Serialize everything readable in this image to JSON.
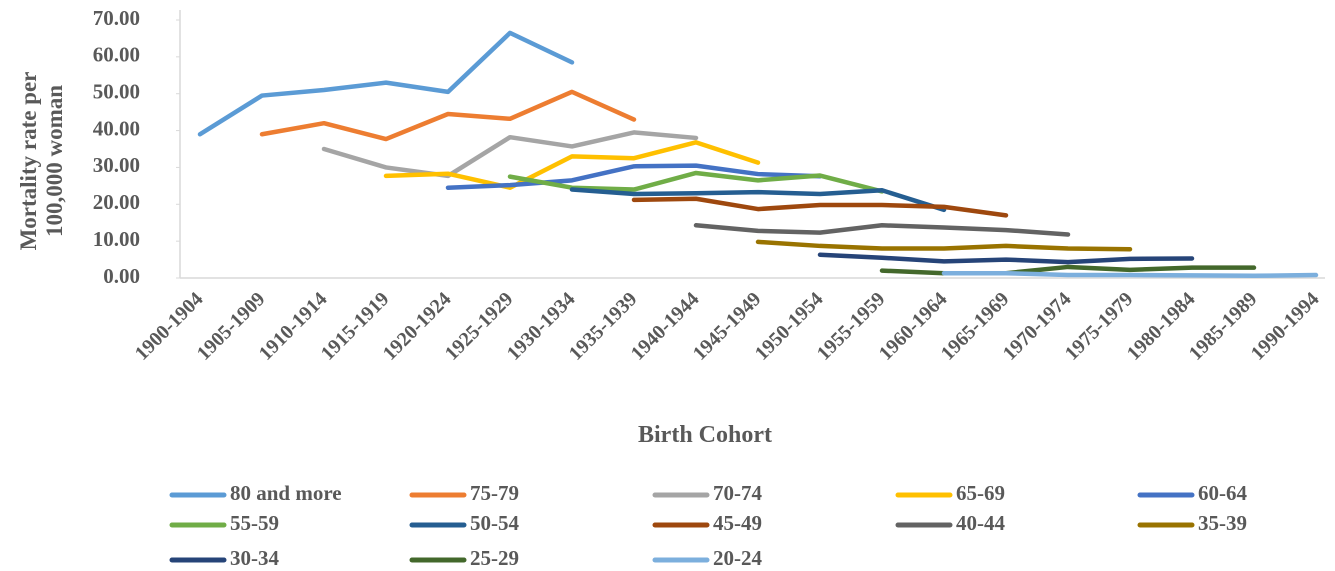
{
  "chart_data": {
    "type": "line",
    "x_label": "Birth Cohort",
    "y_label": "Mortality rate per 100,000 woman",
    "categories": [
      "1900-1904",
      "1905-1909",
      "1910-1914",
      "1915-1919",
      "1920-1924",
      "1925-1929",
      "1930-1934",
      "1935-1939",
      "1940-1944",
      "1945-1949",
      "1950-1954",
      "1955-1959",
      "1960-1964",
      "1965-1969",
      "1970-1974",
      "1975-1979",
      "1980-1984",
      "1985-1989",
      "1990-1994"
    ],
    "ylim": [
      0,
      70
    ],
    "yticks": [
      {
        "value": 0,
        "label": "0.00"
      },
      {
        "value": 10,
        "label": "10.00"
      },
      {
        "value": 20,
        "label": "20.00"
      },
      {
        "value": 30,
        "label": "30.00"
      },
      {
        "value": 40,
        "label": "40.00"
      },
      {
        "value": 50,
        "label": "50.00"
      },
      {
        "value": 60,
        "label": "60.00"
      },
      {
        "value": 70,
        "label": "70.00"
      }
    ],
    "grid": false,
    "series": [
      {
        "name": "80 and more",
        "color": "#5b9bd5",
        "values": [
          39,
          49.5,
          51,
          53,
          50.5,
          66.5,
          58.5,
          null,
          null,
          null,
          null,
          null,
          null,
          null,
          null,
          null,
          null,
          null,
          null
        ]
      },
      {
        "name": "75-79",
        "color": "#ed7d31",
        "values": [
          null,
          39,
          42,
          37.7,
          44.5,
          43.2,
          50.5,
          43,
          null,
          null,
          null,
          null,
          null,
          null,
          null,
          null,
          null,
          null,
          null
        ]
      },
      {
        "name": "70-74",
        "color": "#a5a5a5",
        "values": [
          null,
          null,
          35,
          30,
          27.7,
          38.2,
          35.7,
          39.5,
          38,
          null,
          null,
          null,
          null,
          null,
          null,
          null,
          null,
          null,
          null
        ]
      },
      {
        "name": "65-69",
        "color": "#ffc000",
        "values": [
          null,
          null,
          null,
          27.7,
          28.3,
          24.5,
          33,
          32.5,
          36.8,
          31.3,
          null,
          null,
          null,
          null,
          null,
          null,
          null,
          null,
          null
        ]
      },
      {
        "name": "60-64",
        "color": "#4472c4",
        "values": [
          null,
          null,
          null,
          null,
          24.5,
          25.2,
          26.5,
          30.3,
          30.5,
          28.2,
          27.6,
          null,
          null,
          null,
          null,
          null,
          null,
          null,
          null
        ]
      },
      {
        "name": "55-59",
        "color": "#70ad47",
        "values": [
          null,
          null,
          null,
          null,
          null,
          27.5,
          24.5,
          24,
          28.5,
          26.5,
          27.8,
          23.5,
          null,
          null,
          null,
          null,
          null,
          null,
          null
        ]
      },
      {
        "name": "50-54",
        "color": "#255e91",
        "values": [
          null,
          null,
          null,
          null,
          null,
          null,
          24,
          22.8,
          23,
          23.3,
          22.8,
          23.8,
          18.5,
          null,
          null,
          null,
          null,
          null,
          null
        ]
      },
      {
        "name": "45-49",
        "color": "#9e480e",
        "values": [
          null,
          null,
          null,
          null,
          null,
          null,
          null,
          21.2,
          21.5,
          18.7,
          19.8,
          19.8,
          19.3,
          17,
          null,
          null,
          null,
          null,
          null
        ]
      },
      {
        "name": "40-44",
        "color": "#636363",
        "values": [
          null,
          null,
          null,
          null,
          null,
          null,
          null,
          null,
          14.3,
          12.8,
          12.3,
          14.3,
          13.7,
          13,
          11.8,
          null,
          null,
          null,
          null
        ]
      },
      {
        "name": "35-39",
        "color": "#997300",
        "values": [
          null,
          null,
          null,
          null,
          null,
          null,
          null,
          null,
          null,
          9.8,
          8.7,
          8,
          8,
          8.7,
          8,
          7.8,
          null,
          null,
          null
        ]
      },
      {
        "name": "30-34",
        "color": "#264478",
        "values": [
          null,
          null,
          null,
          null,
          null,
          null,
          null,
          null,
          null,
          null,
          6.3,
          5.5,
          4.5,
          5,
          4.3,
          5.2,
          5.3,
          null,
          null
        ]
      },
      {
        "name": "25-29",
        "color": "#43682b",
        "values": [
          null,
          null,
          null,
          null,
          null,
          null,
          null,
          null,
          null,
          null,
          null,
          2,
          1.3,
          1.3,
          3,
          2.2,
          2.8,
          2.8,
          null
        ]
      },
      {
        "name": "20-24",
        "color": "#7cafdd",
        "values": [
          null,
          null,
          null,
          null,
          null,
          null,
          null,
          null,
          null,
          null,
          null,
          null,
          1.3,
          1.3,
          0.8,
          0.8,
          0.7,
          0.6,
          0.8
        ]
      }
    ]
  }
}
